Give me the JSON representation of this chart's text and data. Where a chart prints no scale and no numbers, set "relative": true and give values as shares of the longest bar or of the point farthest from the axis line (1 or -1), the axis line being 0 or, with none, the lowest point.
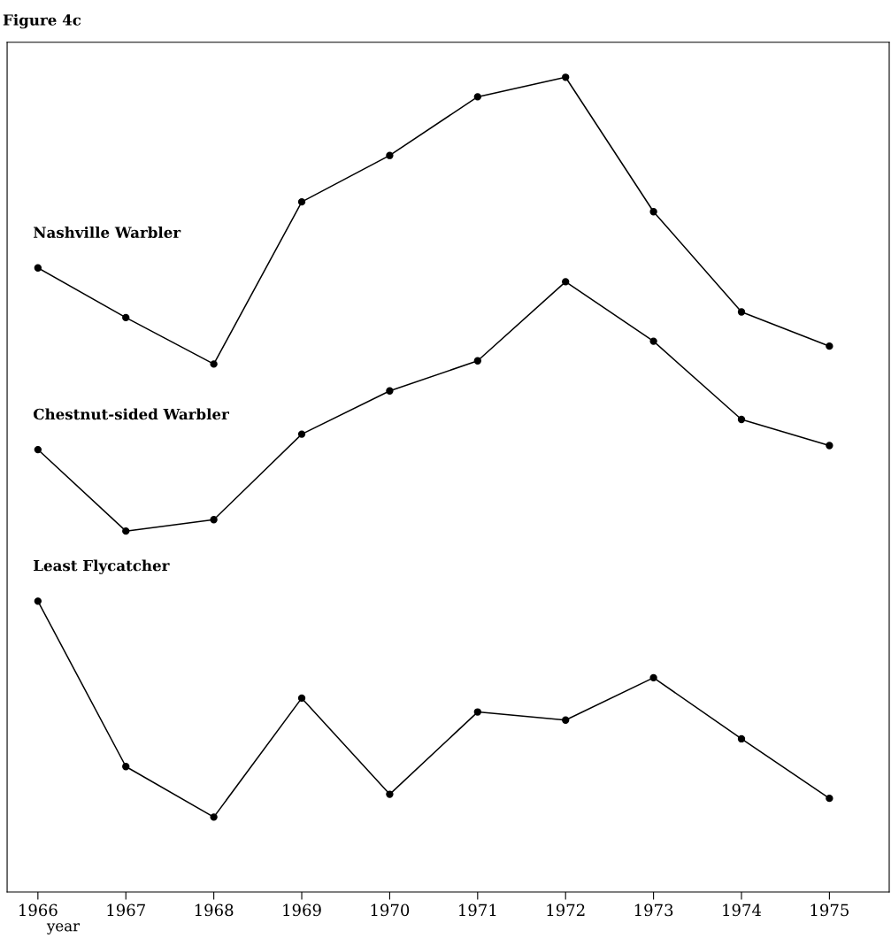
{
  "chart_data": {
    "type": "line",
    "title": "Figure 4c",
    "xlabel": "year",
    "relative": true,
    "marker": "circle",
    "line_style": "solid",
    "grid": false,
    "legend": false,
    "categories": [
      "1966",
      "1967",
      "1968",
      "1969",
      "1970",
      "1971",
      "1972",
      "1973",
      "1974",
      "1975"
    ],
    "series": [
      {
        "name": "Nashville Warbler",
        "color": "#000000",
        "values": [
          0.766,
          0.705,
          0.648,
          0.847,
          0.904,
          0.976,
          1.0,
          0.835,
          0.712,
          0.67
        ]
      },
      {
        "name": "Chestnut-sided Warbler",
        "color": "#000000",
        "values": [
          0.543,
          0.443,
          0.457,
          0.562,
          0.615,
          0.652,
          0.749,
          0.676,
          0.58,
          0.548
        ]
      },
      {
        "name": "Least Flycatcher",
        "color": "#000000",
        "values": [
          0.357,
          0.154,
          0.092,
          0.238,
          0.12,
          0.221,
          0.211,
          0.263,
          0.188,
          0.115
        ]
      }
    ]
  }
}
